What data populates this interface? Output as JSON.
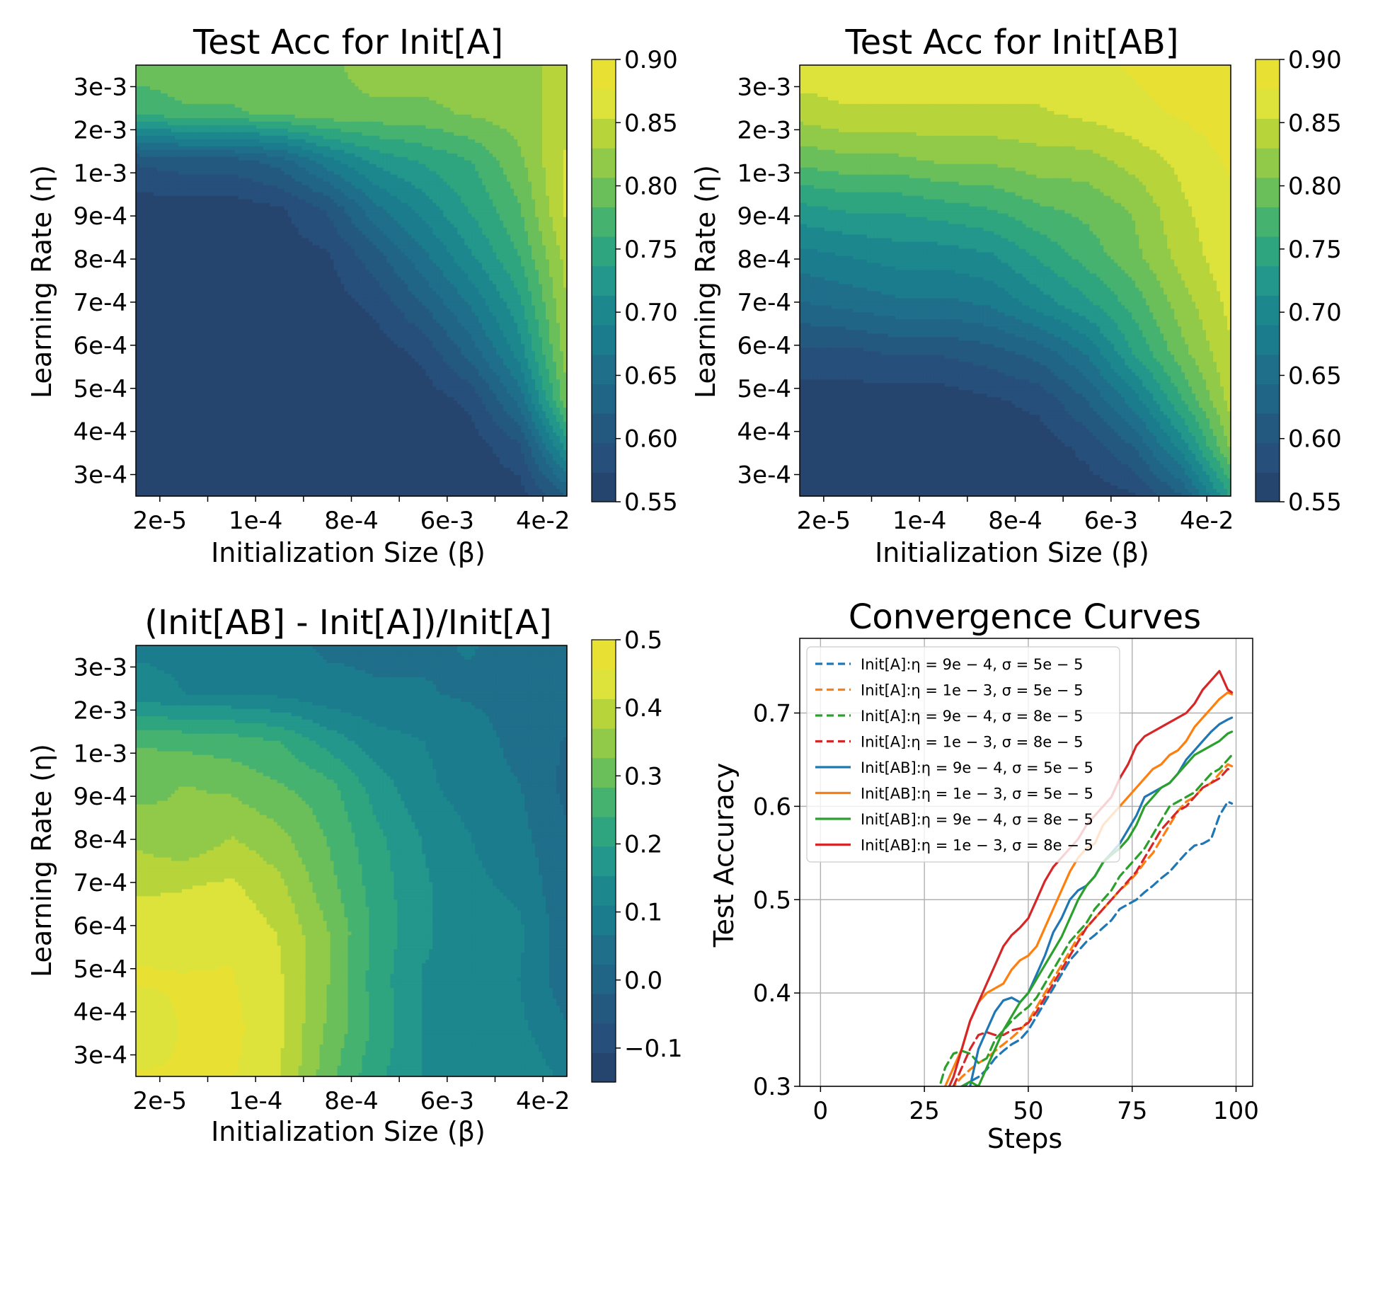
{
  "colors": {
    "levels": [
      "#26456e",
      "#274f7b",
      "#24597f",
      "#206486",
      "#1f6f8b",
      "#1b7c8d",
      "#1d878e",
      "#23978b",
      "#2ea57f",
      "#45b270",
      "#6bbf5b",
      "#90ca48",
      "#b7d43b",
      "#dde33a",
      "#e8e032"
    ],
    "series": {
      "blue": "#1f77b4",
      "orange": "#ff7f0e",
      "green": "#2ca02c",
      "red": "#d62728"
    },
    "grid": "#b0b0b0"
  },
  "heatmaps": [
    {
      "id": "init-a",
      "title": "Test Acc for Init[A]",
      "xlabel": "Initialization Size (β)",
      "ylabel": "Learning Rate (η)",
      "xticks": [
        "2e-5",
        "1e-4",
        "8e-4",
        "6e-3",
        "4e-2"
      ],
      "yticks": [
        "3e-3",
        "2e-3",
        "1e-3",
        "9e-4",
        "8e-4",
        "7e-4",
        "6e-4",
        "5e-4",
        "4e-4",
        "3e-4"
      ],
      "colorbar_ticks": [
        "0.90",
        "0.85",
        "0.80",
        "0.75",
        "0.70",
        "0.65",
        "0.60",
        "0.55"
      ],
      "vmin": 0.55,
      "vmax": 0.9,
      "grid_rows": [
        [
          0.8,
          0.8,
          0.8,
          0.8,
          0.8,
          0.82,
          0.82,
          0.82,
          0.82,
          0.84
        ],
        [
          0.76,
          0.78,
          0.78,
          0.79,
          0.8,
          0.8,
          0.8,
          0.81,
          0.82,
          0.84
        ],
        [
          0.6,
          0.61,
          0.61,
          0.63,
          0.68,
          0.72,
          0.74,
          0.76,
          0.8,
          0.86
        ],
        [
          0.56,
          0.56,
          0.56,
          0.57,
          0.6,
          0.66,
          0.7,
          0.74,
          0.78,
          0.86
        ],
        [
          0.56,
          0.56,
          0.56,
          0.56,
          0.57,
          0.61,
          0.66,
          0.71,
          0.76,
          0.84
        ],
        [
          0.56,
          0.56,
          0.56,
          0.56,
          0.56,
          0.58,
          0.62,
          0.67,
          0.73,
          0.83
        ],
        [
          0.56,
          0.56,
          0.56,
          0.56,
          0.56,
          0.56,
          0.58,
          0.63,
          0.7,
          0.82
        ],
        [
          0.56,
          0.56,
          0.56,
          0.56,
          0.56,
          0.56,
          0.56,
          0.58,
          0.65,
          0.8
        ],
        [
          0.56,
          0.56,
          0.56,
          0.56,
          0.56,
          0.56,
          0.56,
          0.56,
          0.59,
          0.72
        ],
        [
          0.56,
          0.56,
          0.56,
          0.56,
          0.56,
          0.56,
          0.56,
          0.56,
          0.56,
          0.62
        ]
      ]
    },
    {
      "id": "init-ab",
      "title": "Test Acc for Init[AB]",
      "xlabel": "Initialization Size (β)",
      "ylabel": "Learning Rate (η)",
      "xticks": [
        "2e-5",
        "1e-4",
        "8e-4",
        "6e-3",
        "4e-2"
      ],
      "yticks": [
        "3e-3",
        "2e-3",
        "1e-3",
        "9e-4",
        "8e-4",
        "7e-4",
        "6e-4",
        "5e-4",
        "4e-4",
        "3e-4"
      ],
      "colorbar_ticks": [
        "0.90",
        "0.85",
        "0.80",
        "0.75",
        "0.70",
        "0.65",
        "0.60",
        "0.55"
      ],
      "vmin": 0.55,
      "vmax": 0.9,
      "grid_rows": [
        [
          0.87,
          0.87,
          0.87,
          0.87,
          0.87,
          0.87,
          0.87,
          0.88,
          0.89,
          0.9
        ],
        [
          0.84,
          0.85,
          0.85,
          0.85,
          0.85,
          0.85,
          0.86,
          0.87,
          0.88,
          0.89
        ],
        [
          0.79,
          0.8,
          0.8,
          0.81,
          0.81,
          0.82,
          0.82,
          0.84,
          0.86,
          0.88
        ],
        [
          0.73,
          0.74,
          0.74,
          0.75,
          0.76,
          0.78,
          0.79,
          0.81,
          0.85,
          0.87
        ],
        [
          0.68,
          0.69,
          0.7,
          0.7,
          0.71,
          0.74,
          0.77,
          0.8,
          0.84,
          0.87
        ],
        [
          0.64,
          0.65,
          0.66,
          0.66,
          0.67,
          0.7,
          0.73,
          0.77,
          0.82,
          0.86
        ],
        [
          0.59,
          0.59,
          0.6,
          0.6,
          0.61,
          0.63,
          0.67,
          0.74,
          0.8,
          0.85
        ],
        [
          0.56,
          0.56,
          0.56,
          0.56,
          0.57,
          0.58,
          0.62,
          0.68,
          0.76,
          0.84
        ],
        [
          0.56,
          0.56,
          0.56,
          0.56,
          0.56,
          0.56,
          0.58,
          0.62,
          0.7,
          0.81
        ],
        [
          0.56,
          0.56,
          0.56,
          0.56,
          0.56,
          0.56,
          0.56,
          0.57,
          0.62,
          0.74
        ]
      ]
    },
    {
      "id": "ratio",
      "title": "(Init[AB] - Init[A])/Init[A]",
      "xlabel": "Initialization Size (β)",
      "ylabel": "Learning Rate (η)",
      "xticks": [
        "2e-5",
        "1e-4",
        "8e-4",
        "6e-3",
        "4e-2"
      ],
      "yticks": [
        "3e-3",
        "2e-3",
        "1e-3",
        "9e-4",
        "8e-4",
        "7e-4",
        "6e-4",
        "5e-4",
        "4e-4",
        "3e-4"
      ],
      "colorbar_ticks": [
        "0.5",
        "0.4",
        "0.3",
        "0.2",
        "0.1",
        "0.0",
        "−0.1"
      ],
      "vmin": -0.15,
      "vmax": 0.5,
      "grid_rows": [
        [
          0.1,
          0.1,
          0.1,
          0.08,
          0.06,
          0.06,
          0.06,
          0.07,
          0.05,
          0.04
        ],
        [
          0.13,
          0.11,
          0.11,
          0.1,
          0.08,
          0.07,
          0.07,
          0.06,
          0.05,
          0.04
        ],
        [
          0.28,
          0.27,
          0.26,
          0.24,
          0.18,
          0.13,
          0.11,
          0.09,
          0.05,
          0.02
        ],
        [
          0.31,
          0.33,
          0.32,
          0.29,
          0.26,
          0.18,
          0.12,
          0.09,
          0.07,
          0.01
        ],
        [
          0.36,
          0.33,
          0.37,
          0.34,
          0.28,
          0.21,
          0.15,
          0.11,
          0.08,
          0.03
        ],
        [
          0.4,
          0.41,
          0.42,
          0.38,
          0.3,
          0.22,
          0.16,
          0.12,
          0.1,
          0.03
        ],
        [
          0.45,
          0.44,
          0.45,
          0.41,
          0.33,
          0.23,
          0.16,
          0.13,
          0.12,
          0.04
        ],
        [
          0.46,
          0.46,
          0.46,
          0.42,
          0.33,
          0.22,
          0.15,
          0.15,
          0.11,
          0.04
        ],
        [
          0.43,
          0.46,
          0.47,
          0.42,
          0.32,
          0.23,
          0.15,
          0.13,
          0.12,
          0.07
        ],
        [
          0.46,
          0.46,
          0.46,
          0.42,
          0.3,
          0.21,
          0.15,
          0.13,
          0.14,
          0.1
        ]
      ]
    }
  ],
  "chart_data": {
    "type": "line",
    "title": "Convergence Curves",
    "xlabel": "Steps",
    "ylabel": "Test Accuracy",
    "xlim": [
      -5,
      104
    ],
    "ylim": [
      0.3,
      0.78
    ],
    "xticks": [
      "0",
      "25",
      "50",
      "75",
      "100"
    ],
    "yticks": [
      "0.3",
      "0.4",
      "0.5",
      "0.6",
      "0.7"
    ],
    "grid": true,
    "legend": "top-left",
    "x": [
      28,
      30,
      32,
      34,
      36,
      38,
      40,
      42,
      44,
      46,
      48,
      50,
      52,
      54,
      56,
      58,
      60,
      62,
      64,
      66,
      68,
      70,
      72,
      74,
      76,
      78,
      80,
      82,
      84,
      86,
      88,
      90,
      92,
      94,
      96,
      98,
      99
    ],
    "series": [
      {
        "name": "Init[A]:η = 9e − 4, σ = 5e − 5",
        "style": "dashed",
        "color": "blue",
        "values": [
          0.262,
          0.275,
          0.288,
          0.298,
          0.305,
          0.31,
          0.318,
          0.33,
          0.338,
          0.345,
          0.35,
          0.36,
          0.375,
          0.39,
          0.405,
          0.42,
          0.435,
          0.445,
          0.455,
          0.462,
          0.47,
          0.478,
          0.49,
          0.495,
          0.5,
          0.508,
          0.515,
          0.523,
          0.53,
          0.54,
          0.55,
          0.558,
          0.56,
          0.565,
          0.59,
          0.605,
          0.603
        ]
      },
      {
        "name": "Init[A]:η = 1e − 3, σ = 5e − 5",
        "style": "dashed",
        "color": "orange",
        "values": [
          0.27,
          0.285,
          0.3,
          0.31,
          0.318,
          0.325,
          0.33,
          0.338,
          0.345,
          0.352,
          0.36,
          0.37,
          0.385,
          0.4,
          0.415,
          0.43,
          0.445,
          0.46,
          0.47,
          0.48,
          0.49,
          0.5,
          0.51,
          0.518,
          0.528,
          0.54,
          0.55,
          0.565,
          0.58,
          0.595,
          0.605,
          0.61,
          0.62,
          0.625,
          0.635,
          0.645,
          0.643
        ]
      },
      {
        "name": "Init[A]:η = 9e − 4, σ = 8e − 5",
        "style": "dashed",
        "color": "green",
        "values": [
          0.29,
          0.32,
          0.335,
          0.338,
          0.335,
          0.325,
          0.33,
          0.35,
          0.36,
          0.37,
          0.378,
          0.385,
          0.395,
          0.41,
          0.425,
          0.44,
          0.455,
          0.465,
          0.475,
          0.49,
          0.5,
          0.51,
          0.525,
          0.535,
          0.545,
          0.555,
          0.57,
          0.585,
          0.6,
          0.605,
          0.61,
          0.615,
          0.625,
          0.635,
          0.64,
          0.65,
          0.655
        ]
      },
      {
        "name": "Init[A]:η = 1e − 3, σ = 8e − 5",
        "style": "dashed",
        "color": "red",
        "values": [
          0.26,
          0.28,
          0.3,
          0.32,
          0.34,
          0.355,
          0.358,
          0.355,
          0.355,
          0.36,
          0.362,
          0.368,
          0.38,
          0.395,
          0.41,
          0.425,
          0.44,
          0.455,
          0.47,
          0.48,
          0.49,
          0.5,
          0.51,
          0.52,
          0.53,
          0.545,
          0.56,
          0.575,
          0.585,
          0.595,
          0.6,
          0.61,
          0.62,
          0.625,
          0.63,
          0.64,
          0.638
        ]
      },
      {
        "name": "Init[AB]:η = 9e − 4, σ = 5e − 5",
        "style": "solid",
        "color": "blue",
        "values": [
          0.25,
          0.26,
          0.27,
          0.28,
          0.3,
          0.34,
          0.36,
          0.38,
          0.392,
          0.395,
          0.39,
          0.4,
          0.42,
          0.44,
          0.465,
          0.48,
          0.5,
          0.51,
          0.515,
          0.525,
          0.54,
          0.55,
          0.56,
          0.575,
          0.59,
          0.61,
          0.615,
          0.62,
          0.625,
          0.635,
          0.65,
          0.66,
          0.67,
          0.68,
          0.688,
          0.693,
          0.695
        ]
      },
      {
        "name": "Init[AB]:η = 1e − 3, σ = 5e − 5",
        "style": "solid",
        "color": "orange",
        "values": [
          0.28,
          0.3,
          0.32,
          0.34,
          0.37,
          0.39,
          0.4,
          0.405,
          0.41,
          0.425,
          0.435,
          0.44,
          0.45,
          0.47,
          0.49,
          0.51,
          0.53,
          0.545,
          0.555,
          0.56,
          0.58,
          0.59,
          0.6,
          0.61,
          0.62,
          0.63,
          0.64,
          0.645,
          0.655,
          0.66,
          0.67,
          0.685,
          0.695,
          0.705,
          0.715,
          0.722,
          0.72
        ]
      },
      {
        "name": "Init[AB]:η = 9e − 4, σ = 8e − 5",
        "style": "solid",
        "color": "green",
        "values": [
          0.26,
          0.28,
          0.29,
          0.3,
          0.305,
          0.3,
          0.32,
          0.34,
          0.36,
          0.375,
          0.39,
          0.4,
          0.415,
          0.43,
          0.445,
          0.46,
          0.48,
          0.5,
          0.515,
          0.525,
          0.54,
          0.548,
          0.555,
          0.565,
          0.58,
          0.6,
          0.61,
          0.62,
          0.625,
          0.635,
          0.645,
          0.655,
          0.66,
          0.665,
          0.67,
          0.678,
          0.68
        ]
      },
      {
        "name": "Init[AB]:η = 1e − 3, σ = 8e − 5",
        "style": "solid",
        "color": "red",
        "values": [
          0.27,
          0.29,
          0.31,
          0.34,
          0.37,
          0.39,
          0.41,
          0.43,
          0.45,
          0.462,
          0.47,
          0.48,
          0.5,
          0.52,
          0.535,
          0.545,
          0.555,
          0.565,
          0.58,
          0.59,
          0.6,
          0.61,
          0.63,
          0.645,
          0.665,
          0.675,
          0.68,
          0.685,
          0.69,
          0.695,
          0.7,
          0.71,
          0.725,
          0.735,
          0.745,
          0.725,
          0.722
        ]
      }
    ]
  }
}
